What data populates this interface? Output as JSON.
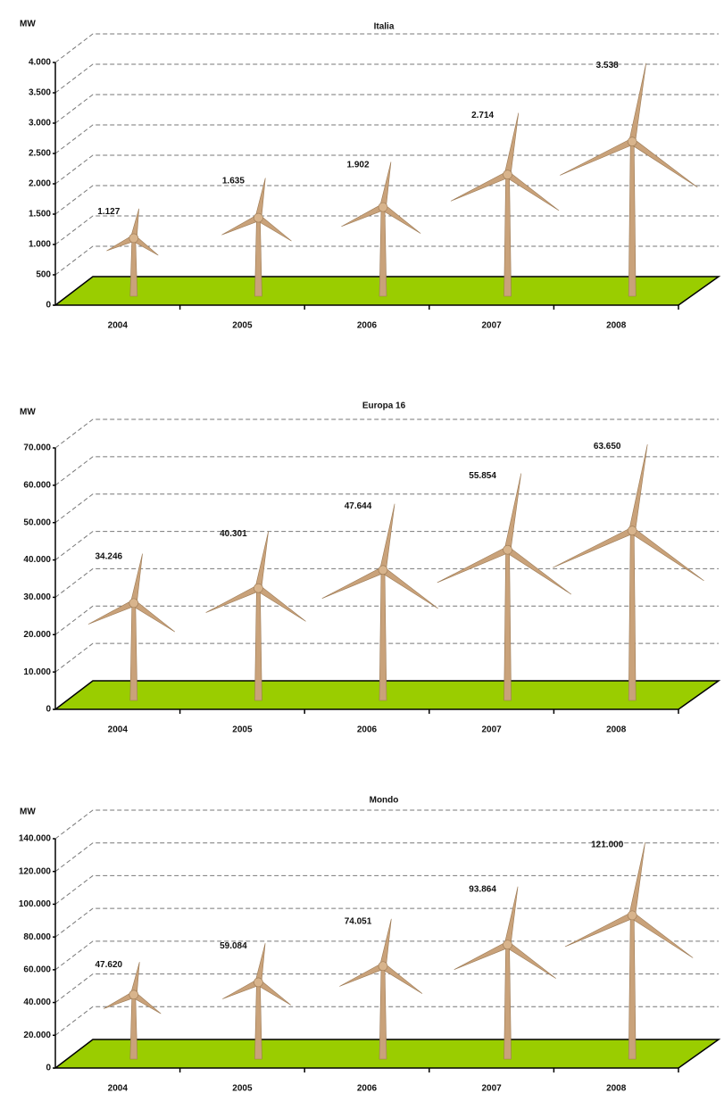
{
  "chart_data": [
    {
      "type": "bar",
      "title": "Italia",
      "y_label": "MW",
      "categories": [
        "2004",
        "2005",
        "2006",
        "2007",
        "2008"
      ],
      "values": [
        1127,
        1635,
        1902,
        2714,
        3538
      ],
      "value_labels": [
        "1.127",
        "1.635",
        "1.902",
        "2.714",
        "3.538"
      ],
      "color": "#c9a27a",
      "floor_color": "#9acd00",
      "ylim": [
        0,
        4000
      ],
      "yticks": [
        0,
        500,
        {
          "value": 1000,
          "label": "1.000"
        },
        {
          "value": 1500,
          "label": "1.500"
        },
        {
          "value": 2000,
          "label": "2.000"
        },
        {
          "value": 2500,
          "label": "2.500"
        },
        {
          "value": 3000,
          "label": "3.000"
        },
        {
          "value": 3500,
          "label": "3.500"
        },
        {
          "value": 4000,
          "label": "4.000"
        }
      ],
      "grid": true
    },
    {
      "type": "bar",
      "title": "Europa 16",
      "y_label": "MW",
      "categories": [
        "2004",
        "2005",
        "2006",
        "2007",
        "2008"
      ],
      "values": [
        34246,
        40301,
        47644,
        55854,
        63650
      ],
      "value_labels": [
        "34.246",
        "40.301",
        "47.644",
        "55.854",
        "63.650"
      ],
      "color": "#c9a27a",
      "floor_color": "#9acd00",
      "ylim": [
        0,
        70000
      ],
      "yticks": [
        0,
        {
          "value": 10000,
          "label": "10.000"
        },
        {
          "value": 20000,
          "label": "20.000"
        },
        {
          "value": 30000,
          "label": "30.000"
        },
        {
          "value": 40000,
          "label": "40.000"
        },
        {
          "value": 50000,
          "label": "50.000"
        },
        {
          "value": 60000,
          "label": "60.000"
        },
        {
          "value": 70000,
          "label": "70.000"
        }
      ],
      "grid": true
    },
    {
      "type": "bar",
      "title": "Mondo",
      "y_label": "MW",
      "categories": [
        "2004",
        "2005",
        "2006",
        "2007",
        "2008"
      ],
      "values": [
        47620,
        59084,
        74051,
        93864,
        121000
      ],
      "value_labels": [
        "47.620",
        "59.084",
        "74.051",
        "93.864",
        "121.000"
      ],
      "color": "#c9a27a",
      "floor_color": "#9acd00",
      "ylim": [
        0,
        140000
      ],
      "yticks": [
        0,
        {
          "value": 20000,
          "label": "20.000"
        },
        {
          "value": 40000,
          "label": "40.000"
        },
        {
          "value": 60000,
          "label": "60.000"
        },
        {
          "value": 80000,
          "label": "80.000"
        },
        {
          "value": 100000,
          "label": "100.000"
        },
        {
          "value": 120000,
          "label": "120.000"
        },
        {
          "value": 140000,
          "label": "140.000"
        }
      ],
      "grid": true
    }
  ]
}
